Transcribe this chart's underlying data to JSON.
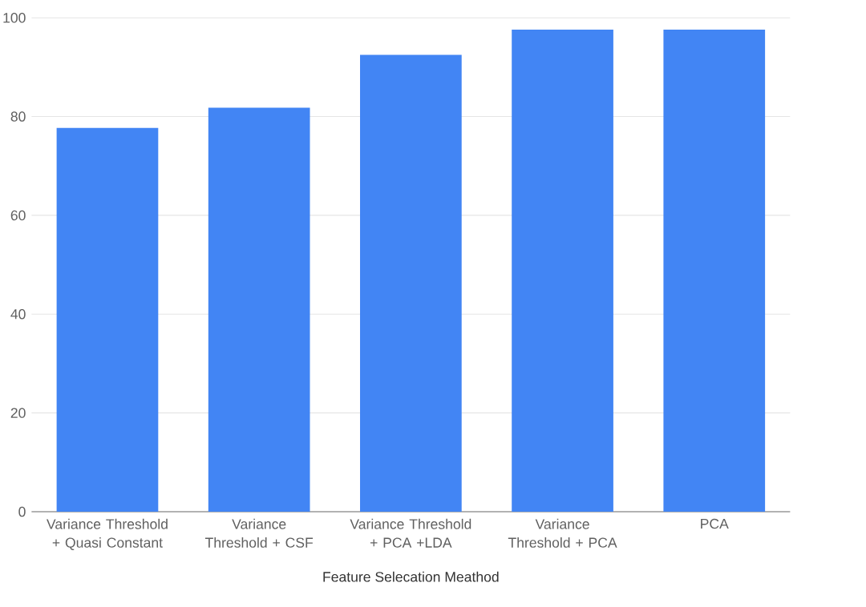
{
  "chart_data": {
    "type": "bar",
    "xlabel": "Feature Selecation Meathod",
    "categories": [
      "Variance Threshold + Quasi Constant",
      "Variance Threshold + CSF",
      "Variance Threshold + PCA +LDA",
      "Variance Threshold + PCA",
      "PCA"
    ],
    "values": [
      77.7,
      81.8,
      92.5,
      97.6,
      97.6
    ],
    "color": "#4285f4",
    "ylim": [
      0,
      100
    ],
    "yticks": [
      0,
      20,
      40,
      60,
      80,
      100
    ],
    "grid": "y"
  }
}
